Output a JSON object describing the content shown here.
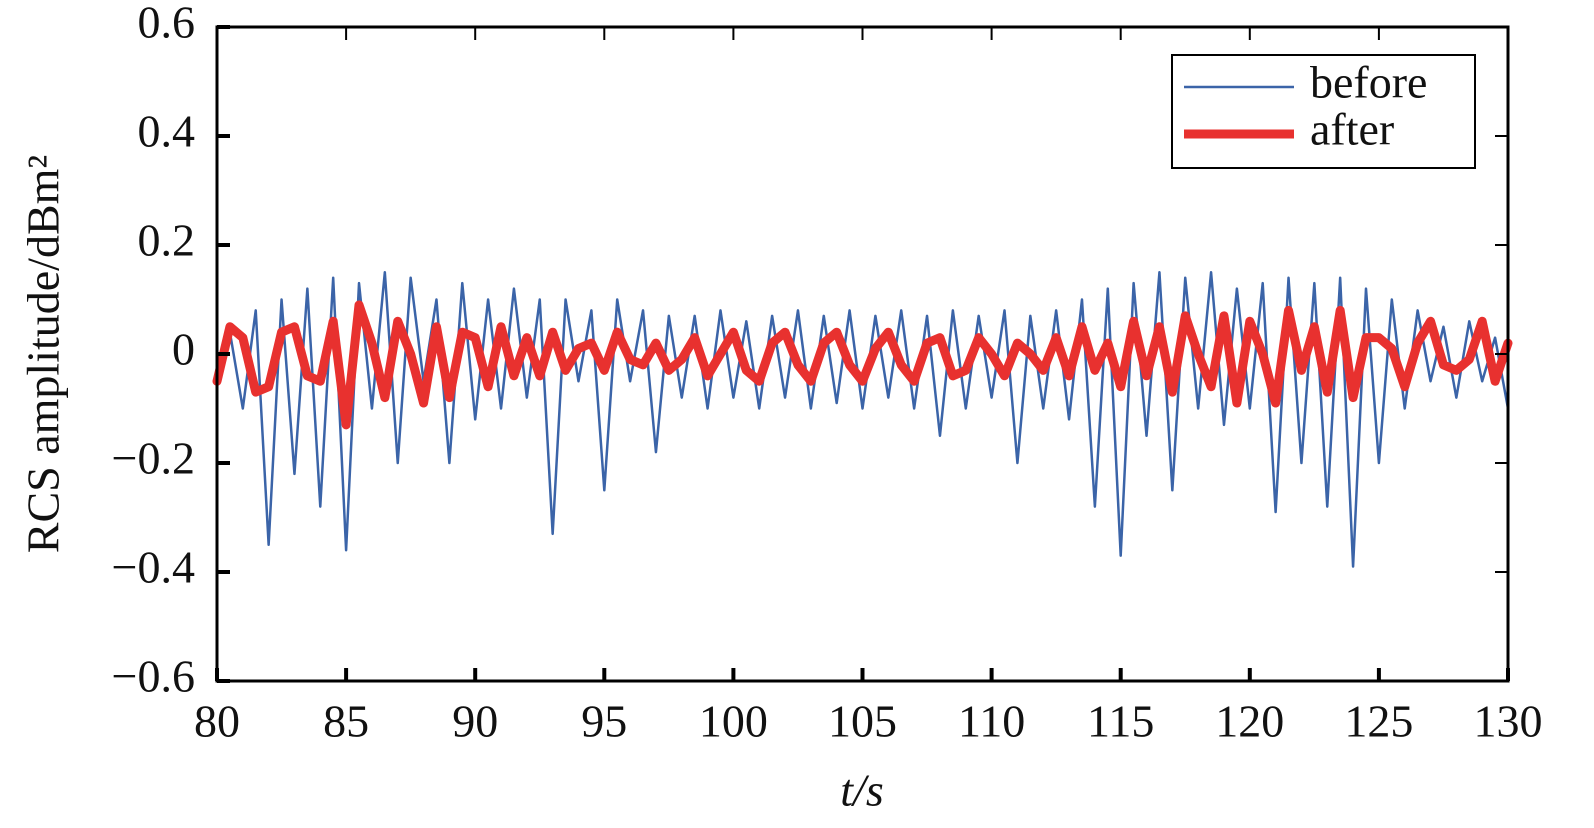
{
  "chart_data": {
    "type": "line",
    "xlabel": "t/s",
    "ylabel": "RCS amplitude/dBm²",
    "x": [
      80,
      80.5,
      81,
      81.5,
      82,
      82.5,
      83,
      83.5,
      84,
      84.5,
      85,
      85.5,
      86,
      86.5,
      87,
      87.5,
      88,
      88.5,
      89,
      89.5,
      90,
      90.5,
      91,
      91.5,
      92,
      92.5,
      93,
      93.5,
      94,
      94.5,
      95,
      95.5,
      96,
      96.5,
      97,
      97.5,
      98,
      98.5,
      99,
      99.5,
      100,
      100.5,
      101,
      101.5,
      102,
      102.5,
      103,
      103.5,
      104,
      104.5,
      105,
      105.5,
      106,
      106.5,
      107,
      107.5,
      108,
      108.5,
      109,
      109.5,
      110,
      110.5,
      111,
      111.5,
      112,
      112.5,
      113,
      113.5,
      114,
      114.5,
      115,
      115.5,
      116,
      116.5,
      117,
      117.5,
      118,
      118.5,
      119,
      119.5,
      120,
      120.5,
      121,
      121.5,
      122,
      122.5,
      123,
      123.5,
      124,
      124.5,
      125,
      125.5,
      126,
      126.5,
      127,
      127.5,
      128,
      128.5,
      129,
      129.5,
      130
    ],
    "series": [
      {
        "name": "before",
        "color": "#3b64a8",
        "width": 2.5,
        "values": [
          -0.05,
          0.04,
          -0.1,
          0.08,
          -0.35,
          0.1,
          -0.22,
          0.12,
          -0.28,
          0.14,
          -0.36,
          0.13,
          -0.1,
          0.15,
          -0.2,
          0.14,
          -0.05,
          0.1,
          -0.2,
          0.13,
          -0.12,
          0.1,
          -0.1,
          0.12,
          -0.08,
          0.1,
          -0.33,
          0.1,
          -0.05,
          0.08,
          -0.25,
          0.1,
          -0.05,
          0.08,
          -0.18,
          0.07,
          -0.08,
          0.07,
          -0.1,
          0.08,
          -0.08,
          0.06,
          -0.1,
          0.07,
          -0.08,
          0.08,
          -0.1,
          0.07,
          -0.09,
          0.08,
          -0.1,
          0.07,
          -0.08,
          0.08,
          -0.1,
          0.07,
          -0.15,
          0.08,
          -0.1,
          0.07,
          -0.08,
          0.08,
          -0.2,
          0.07,
          -0.1,
          0.08,
          -0.12,
          0.1,
          -0.28,
          0.12,
          -0.37,
          0.13,
          -0.15,
          0.15,
          -0.25,
          0.14,
          -0.1,
          0.15,
          -0.13,
          0.12,
          -0.1,
          0.13,
          -0.29,
          0.14,
          -0.2,
          0.13,
          -0.28,
          0.14,
          -0.39,
          0.12,
          -0.2,
          0.1,
          -0.1,
          0.08,
          -0.05,
          0.05,
          -0.08,
          0.06,
          -0.05,
          0.03,
          -0.1
        ]
      },
      {
        "name": "after",
        "color": "#e8312f",
        "width": 9,
        "values": [
          -0.05,
          0.05,
          0.03,
          -0.07,
          -0.06,
          0.04,
          0.05,
          -0.04,
          -0.05,
          0.06,
          -0.13,
          0.09,
          0.02,
          -0.08,
          0.06,
          0.0,
          -0.09,
          0.05,
          -0.08,
          0.04,
          0.03,
          -0.06,
          0.05,
          -0.04,
          0.03,
          -0.04,
          0.04,
          -0.03,
          0.01,
          0.02,
          -0.03,
          0.04,
          -0.01,
          -0.02,
          0.02,
          -0.03,
          -0.01,
          0.03,
          -0.04,
          0.0,
          0.04,
          -0.03,
          -0.05,
          0.02,
          0.04,
          -0.02,
          -0.05,
          0.02,
          0.04,
          -0.02,
          -0.05,
          0.01,
          0.04,
          -0.02,
          -0.05,
          0.02,
          0.03,
          -0.04,
          -0.03,
          0.03,
          0.0,
          -0.04,
          0.02,
          0.0,
          -0.03,
          0.03,
          -0.04,
          0.05,
          -0.03,
          0.02,
          -0.06,
          0.06,
          -0.04,
          0.05,
          -0.07,
          0.07,
          0.0,
          -0.06,
          0.07,
          -0.09,
          0.06,
          0.0,
          -0.09,
          0.08,
          -0.03,
          0.05,
          -0.07,
          0.08,
          -0.08,
          0.03,
          0.03,
          0.01,
          -0.06,
          0.02,
          0.06,
          -0.02,
          -0.03,
          -0.01,
          0.06,
          -0.05,
          0.02
        ]
      }
    ],
    "xlim": [
      80,
      130
    ],
    "xticks": [
      80,
      85,
      90,
      95,
      100,
      105,
      110,
      115,
      120,
      125,
      130
    ],
    "ylim": [
      -0.6,
      0.6
    ],
    "yticks": [
      {
        "value": -0.6,
        "label": "−0.6"
      },
      {
        "value": -0.4,
        "label": "−0.4"
      },
      {
        "value": -0.2,
        "label": "−0.2"
      },
      0,
      0.2,
      0.4,
      0.6
    ],
    "grid": false,
    "legend": "upper right"
  }
}
